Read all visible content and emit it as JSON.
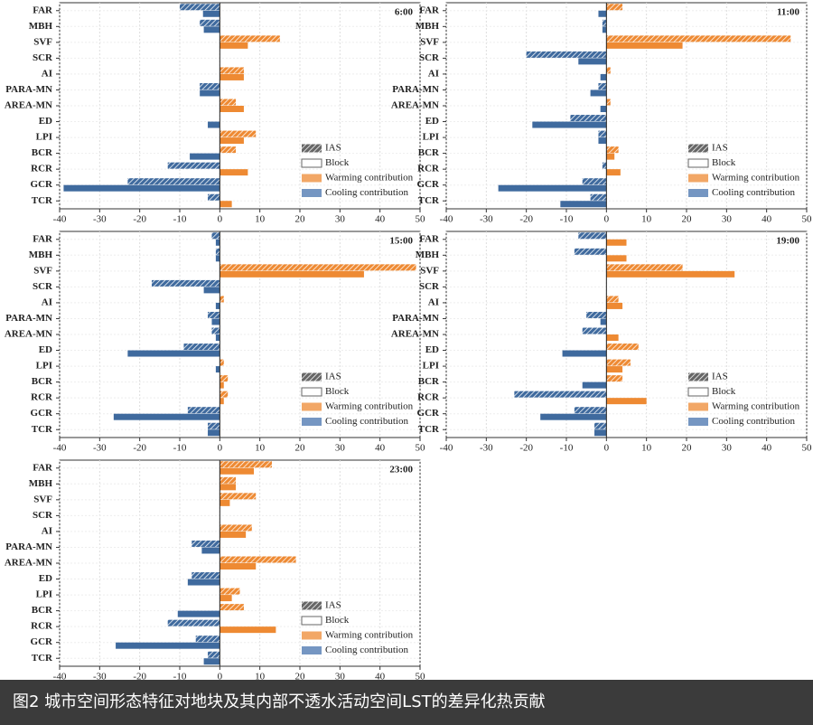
{
  "chart_data": [
    {
      "type": "bar",
      "orientation": "horizontal",
      "title": "6:00",
      "categories": [
        "FAR",
        "MBH",
        "SVF",
        "SCR",
        "AI",
        "PARA-MN",
        "AREA-MN",
        "ED",
        "LPI",
        "BCR",
        "RCR",
        "GCR",
        "TCR"
      ],
      "series": [
        {
          "name": "IAS",
          "values": [
            -10,
            -5,
            15,
            0,
            6,
            -5,
            4,
            0,
            9,
            4,
            -13,
            -23,
            -3
          ]
        },
        {
          "name": "Block",
          "values": [
            -4.2,
            -4,
            7,
            0,
            6,
            -5,
            6,
            -3,
            6,
            -7.5,
            7,
            -39,
            3
          ]
        }
      ],
      "legend_labels": {
        "warming": "Warming contribution",
        "cooling": "Cooling contribution"
      },
      "warming_color": "#ee8a33",
      "cooling_color": "#3f6a9e",
      "xlim": [
        -40,
        50
      ],
      "xticks": [
        -40,
        -30,
        -20,
        -10,
        0,
        10,
        20,
        30,
        40,
        50
      ],
      "grid": true
    },
    {
      "type": "bar",
      "orientation": "horizontal",
      "title": "11:00",
      "categories": [
        "FAR",
        "MBH",
        "SVF",
        "SCR",
        "AI",
        "PARA-MN",
        "AREA-MN",
        "ED",
        "LPI",
        "BCR",
        "RCR",
        "GCR",
        "TCR"
      ],
      "series": [
        {
          "name": "IAS",
          "values": [
            4,
            -1,
            46,
            -20,
            1,
            -2,
            1,
            -9,
            -2,
            3,
            -1,
            -6,
            -4
          ]
        },
        {
          "name": "Block",
          "values": [
            -2,
            -1,
            19,
            -7,
            -1.5,
            -4,
            -1.5,
            -18.5,
            -2,
            2,
            3.5,
            -27,
            -11.5
          ]
        }
      ],
      "legend_labels": {
        "warming": "Warming contribution",
        "cooling": "Cooling contribution"
      },
      "warming_color": "#ee8a33",
      "cooling_color": "#3f6a9e",
      "xlim": [
        -40,
        50
      ],
      "xticks": [
        -40,
        -30,
        -20,
        -10,
        0,
        10,
        20,
        30,
        40,
        50
      ],
      "grid": true
    },
    {
      "type": "bar",
      "orientation": "horizontal",
      "title": "15:00",
      "categories": [
        "FAR",
        "MBH",
        "SVF",
        "SCR",
        "AI",
        "PARA-MN",
        "AREA-MN",
        "ED",
        "LPI",
        "BCR",
        "RCR",
        "GCR",
        "TCR"
      ],
      "series": [
        {
          "name": "IAS",
          "values": [
            -2,
            -1,
            49,
            -17,
            1,
            -3,
            -2,
            -9,
            1,
            2,
            2,
            -8,
            -3
          ]
        },
        {
          "name": "Block",
          "values": [
            -1,
            -1,
            36,
            -4,
            -1,
            -2,
            -1,
            -23,
            -1,
            1,
            1,
            -26.5,
            -3
          ]
        }
      ],
      "legend_labels": {
        "warming": "Warming contribution",
        "cooling": "Cooling contribution"
      },
      "warming_color": "#ee8a33",
      "cooling_color": "#3f6a9e",
      "xlim": [
        -40,
        50
      ],
      "xticks": [
        -40,
        -30,
        -20,
        -10,
        0,
        10,
        20,
        30,
        40,
        50
      ],
      "grid": true
    },
    {
      "type": "bar",
      "orientation": "horizontal",
      "title": "19:00",
      "categories": [
        "FAR",
        "MBH",
        "SVF",
        "SCR",
        "AI",
        "PARA-MN",
        "AREA-MN",
        "ED",
        "LPI",
        "BCR",
        "RCR",
        "GCR",
        "TCR"
      ],
      "series": [
        {
          "name": "IAS",
          "values": [
            -7,
            -8,
            19,
            0,
            3,
            -5,
            -6,
            8,
            6,
            4,
            -23,
            -8,
            -3
          ]
        },
        {
          "name": "Block",
          "values": [
            5,
            5,
            32,
            0,
            4,
            -1.5,
            3,
            -11,
            4,
            -6,
            10,
            -16.5,
            -3
          ]
        }
      ],
      "legend_labels": {
        "warming": "Warming contribution",
        "cooling": "Cooling contribution"
      },
      "warming_color": "#ee8a33",
      "cooling_color": "#3f6a9e",
      "xlim": [
        -40,
        50
      ],
      "xticks": [
        -40,
        -30,
        -20,
        -10,
        0,
        10,
        20,
        30,
        40,
        50
      ],
      "grid": true
    },
    {
      "type": "bar",
      "orientation": "horizontal",
      "title": "23:00",
      "categories": [
        "FAR",
        "MBH",
        "SVF",
        "SCR",
        "AI",
        "PARA-MN",
        "AREA-MN",
        "ED",
        "LPI",
        "BCR",
        "RCR",
        "GCR",
        "TCR"
      ],
      "series": [
        {
          "name": "IAS",
          "values": [
            13,
            4,
            9,
            0,
            8,
            -7,
            19,
            -7,
            5,
            6,
            -13,
            -6,
            -3
          ]
        },
        {
          "name": "Block",
          "values": [
            8.5,
            4,
            2.5,
            0,
            6.5,
            -4.5,
            9,
            -8,
            3,
            -10.5,
            14,
            -26,
            -4
          ]
        }
      ],
      "legend_labels": {
        "warming": "Warming contribution",
        "cooling": "Cooling contribution"
      },
      "warming_color": "#ee8a33",
      "cooling_color": "#3f6a9e",
      "xlim": [
        -40,
        50
      ],
      "xticks": [
        -40,
        -30,
        -20,
        -10,
        0,
        10,
        20,
        30,
        40,
        50
      ],
      "grid": true
    }
  ],
  "caption": "图2 城市空间形态特征对地块及其内部不透水活动空间LST的差异化热贡献"
}
